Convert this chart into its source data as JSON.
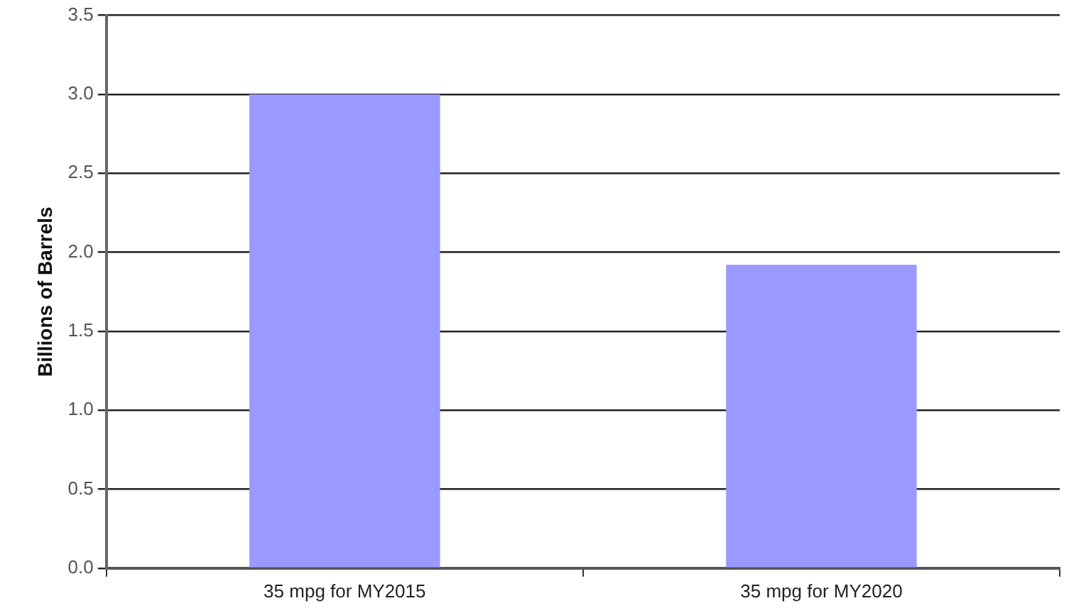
{
  "chart_data": {
    "type": "bar",
    "ylabel": "Billions of Barrels",
    "categories": [
      "35 mpg for MY2015",
      "35 mpg for MY2020"
    ],
    "values": [
      3.0,
      1.92
    ],
    "color": "#9999ff",
    "ylim": [
      0,
      3.5
    ],
    "yticks": [
      {
        "value": 0,
        "label": "0.0"
      },
      {
        "value": 0.5,
        "label": "0.5"
      },
      {
        "value": 1,
        "label": "1.0"
      },
      {
        "value": 1.5,
        "label": "1.5"
      },
      {
        "value": 2,
        "label": "2.0"
      },
      {
        "value": 2.5,
        "label": "2.5"
      },
      {
        "value": 3,
        "label": "3.0"
      },
      {
        "value": 3.5,
        "label": "3.5"
      }
    ],
    "grid": "y",
    "legend": false
  }
}
